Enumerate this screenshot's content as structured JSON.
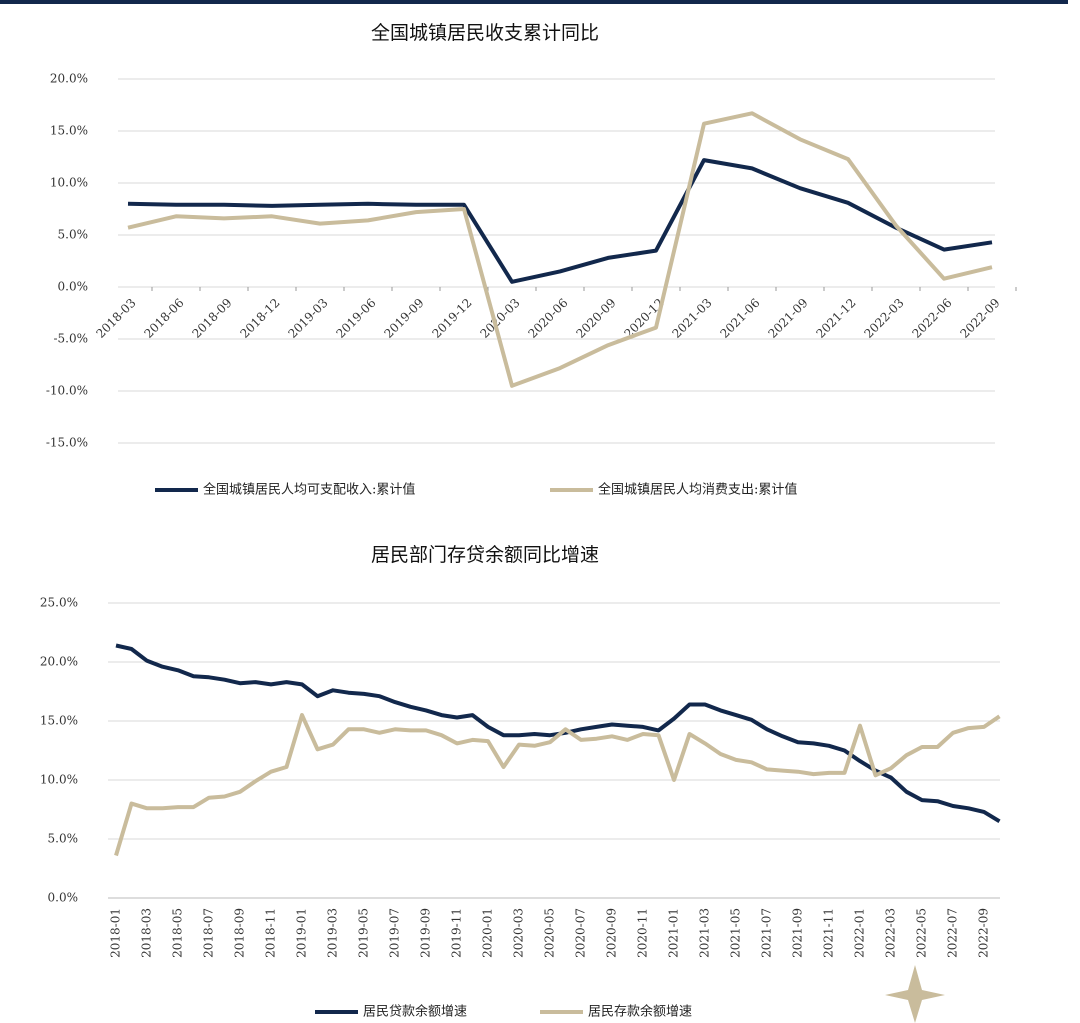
{
  "chart_data": [
    {
      "type": "line",
      "title": "全国城镇居民收支累计同比",
      "categories": [
        "2018-03",
        "2018-06",
        "2018-09",
        "2018-12",
        "2019-03",
        "2019-06",
        "2019-09",
        "2019-12",
        "2020-03",
        "2020-06",
        "2020-09",
        "2020-12",
        "2021-03",
        "2021-06",
        "2021-09",
        "2021-12",
        "2022-03",
        "2022-06",
        "2022-09"
      ],
      "series": [
        {
          "name": "全国城镇居民人均可支配收入:累计值",
          "color": "#12284c",
          "values": [
            8.0,
            7.9,
            7.9,
            7.8,
            7.9,
            8.0,
            7.9,
            7.9,
            0.5,
            1.5,
            2.8,
            3.5,
            12.2,
            11.4,
            9.5,
            8.1,
            5.7,
            3.6,
            4.3
          ]
        },
        {
          "name": "全国城镇居民人均消费支出:累计值",
          "color": "#c9bc9c",
          "values": [
            5.7,
            6.8,
            6.6,
            6.8,
            6.1,
            6.4,
            7.2,
            7.5,
            -9.5,
            -7.8,
            -5.6,
            -3.9,
            15.7,
            16.7,
            14.2,
            12.3,
            5.9,
            0.8,
            1.9
          ]
        }
      ],
      "ylim": [
        -15,
        20
      ],
      "yticks": [
        {
          "value": -15,
          "label": "-15.0%"
        },
        {
          "value": -10,
          "label": "-10.0%"
        },
        {
          "value": -5,
          "label": "-5.0%"
        },
        {
          "value": 0,
          "label": "0.0%"
        },
        {
          "value": 5,
          "label": "5.0%"
        },
        {
          "value": 10,
          "label": "10.0%"
        },
        {
          "value": 15,
          "label": "15.0%"
        },
        {
          "value": 20,
          "label": "20.0%"
        }
      ],
      "grid": true
    },
    {
      "type": "line",
      "title": "居民部门存贷余额同比增速",
      "categories": [
        "2018-01",
        null,
        "2018-03",
        null,
        "2018-05",
        null,
        "2018-07",
        null,
        "2018-09",
        null,
        "2018-11",
        null,
        "2019-01",
        null,
        "2019-03",
        null,
        "2019-05",
        null,
        "2019-07",
        null,
        "2019-09",
        null,
        "2019-11",
        null,
        "2020-01",
        null,
        "2020-03",
        null,
        "2020-05",
        null,
        "2020-07",
        null,
        "2020-09",
        null,
        "2020-11",
        null,
        "2021-01",
        null,
        "2021-03",
        null,
        "2021-05",
        null,
        "2021-07",
        null,
        "2021-09",
        null,
        "2021-11",
        null,
        "2022-01",
        null,
        "2022-03",
        null,
        "2022-05",
        null,
        "2022-07",
        null,
        "2022-09",
        null
      ],
      "series": [
        {
          "name": "居民贷款余额增速",
          "color": "#12284c",
          "values": [
            21.4,
            21.1,
            20.1,
            19.6,
            19.3,
            18.8,
            18.7,
            18.5,
            18.2,
            18.3,
            18.1,
            18.3,
            18.1,
            17.1,
            17.6,
            17.4,
            17.3,
            17.1,
            16.6,
            16.2,
            15.9,
            15.5,
            15.3,
            15.5,
            14.5,
            13.8,
            13.8,
            13.9,
            13.8,
            14.0,
            14.3,
            14.5,
            14.7,
            14.6,
            14.5,
            14.2,
            15.2,
            16.4,
            16.4,
            15.9,
            15.5,
            15.1,
            14.3,
            13.7,
            13.2,
            13.1,
            12.9,
            12.5,
            11.6,
            10.8,
            10.2,
            9.0,
            8.3,
            8.2,
            7.8,
            7.6,
            7.3,
            6.5
          ]
        },
        {
          "name": "居民存款余额增速",
          "color": "#c9bc9c",
          "values": [
            3.6,
            8.0,
            7.6,
            7.6,
            7.7,
            7.7,
            8.5,
            8.6,
            9.0,
            9.9,
            10.7,
            11.1,
            15.5,
            12.6,
            13.0,
            14.3,
            14.3,
            14.0,
            14.3,
            14.2,
            14.2,
            13.8,
            13.1,
            13.4,
            13.3,
            11.1,
            13.0,
            12.9,
            13.2,
            14.3,
            13.4,
            13.5,
            13.7,
            13.4,
            13.9,
            13.8,
            10.0,
            13.9,
            13.1,
            12.2,
            11.7,
            11.5,
            10.9,
            10.8,
            10.7,
            10.5,
            10.6,
            10.6,
            14.6,
            10.4,
            11.0,
            12.1,
            12.8,
            12.8,
            14.0,
            14.4,
            14.5,
            15.4
          ]
        }
      ],
      "ylim": [
        0,
        25
      ],
      "yticks": [
        {
          "value": 0,
          "label": "0.0%"
        },
        {
          "value": 5,
          "label": "5.0%"
        },
        {
          "value": 10,
          "label": "10.0%"
        },
        {
          "value": 15,
          "label": "15.0%"
        },
        {
          "value": 20,
          "label": "20.0%"
        },
        {
          "value": 25,
          "label": "25.0%"
        }
      ],
      "grid": true
    }
  ]
}
